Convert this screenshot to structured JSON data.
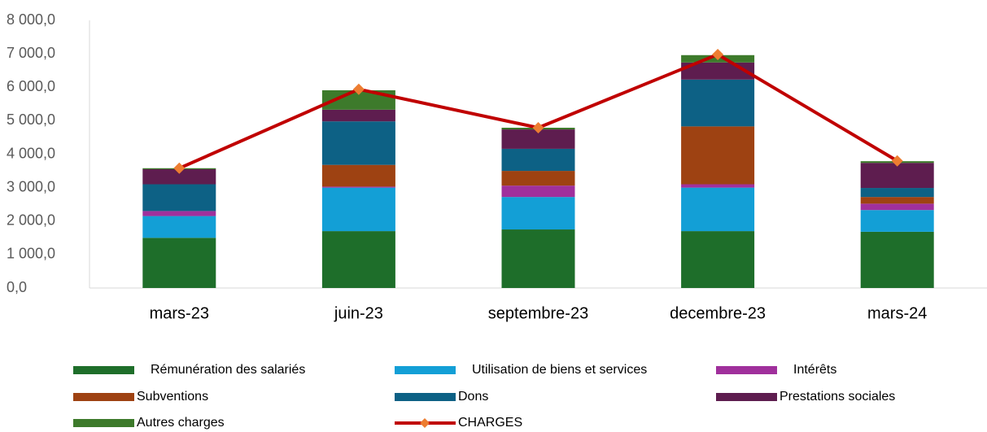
{
  "chart_data": {
    "type": "stacked-bar-line",
    "categories": [
      "mars-23",
      "juin-23",
      "septembre-23",
      "decembre-23",
      "mars-24"
    ],
    "series": [
      {
        "name": "Rémunération des salariés",
        "color": "#1e6e2a",
        "values": [
          1500,
          1700,
          1750,
          1700,
          1680
        ]
      },
      {
        "name": "Utilisation de biens et services",
        "color": "#139fd6",
        "values": [
          650,
          1300,
          970,
          1300,
          650
        ]
      },
      {
        "name": "Intérêts",
        "color": "#a0309c",
        "values": [
          150,
          30,
          340,
          100,
          190
        ]
      },
      {
        "name": "Subventions",
        "color": "#9e4212",
        "values": [
          0,
          650,
          440,
          1730,
          200
        ]
      },
      {
        "name": "Dons",
        "color": "#0d6185",
        "values": [
          800,
          1300,
          660,
          1400,
          270
        ]
      },
      {
        "name": "Prestations sociales",
        "color": "#5e1d4f",
        "values": [
          450,
          350,
          580,
          510,
          750
        ]
      },
      {
        "name": "Autres charges",
        "color": "#3d7a2b",
        "values": [
          30,
          580,
          50,
          220,
          50
        ]
      },
      {
        "name": "CHARGES",
        "color": "#c00000",
        "marker_color": "#ed7d31",
        "type": "line",
        "values": [
          3580,
          5940,
          4790,
          6980,
          3800
        ]
      }
    ],
    "ylim": [
      0,
      8000
    ],
    "yticks": [
      {
        "value": 0,
        "label": "0,0"
      },
      {
        "value": 1000,
        "label": "1 000,0"
      },
      {
        "value": 2000,
        "label": "2 000,0"
      },
      {
        "value": 3000,
        "label": "3 000,0"
      },
      {
        "value": 4000,
        "label": "4 000,0"
      },
      {
        "value": 5000,
        "label": "5 000,0"
      },
      {
        "value": 6000,
        "label": "6 000,0"
      },
      {
        "value": 7000,
        "label": "7 000,0"
      },
      {
        "value": 8000,
        "label": "8 000,0"
      }
    ],
    "grid": false
  }
}
